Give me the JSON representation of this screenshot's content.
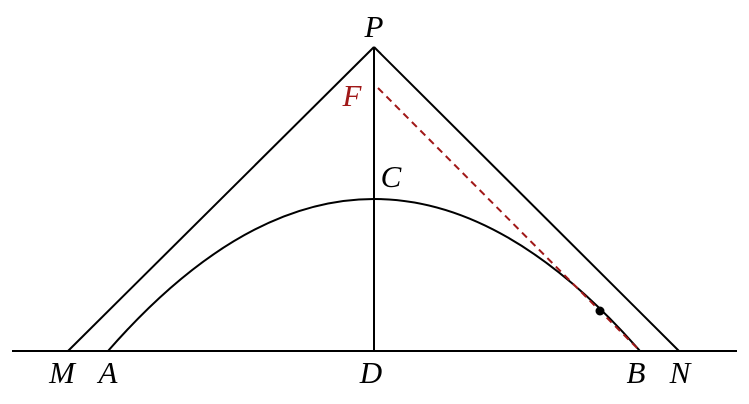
{
  "labels": {
    "P": "P",
    "F": "F",
    "C": "C",
    "M": "M",
    "A": "A",
    "D": "D",
    "B": "B",
    "N": "N"
  }
}
